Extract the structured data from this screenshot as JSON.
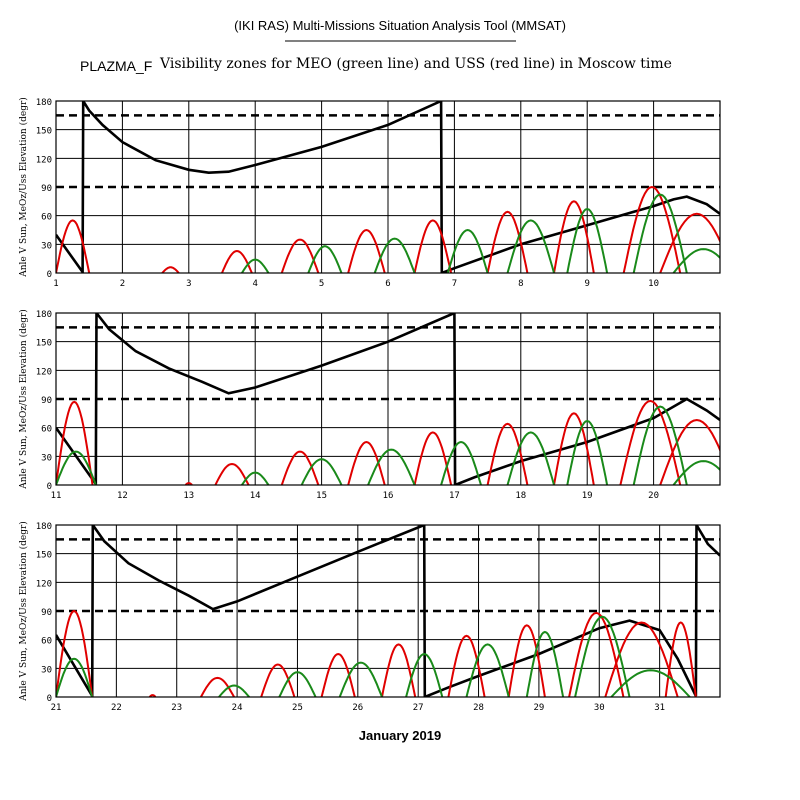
{
  "header": {
    "tool_title": "(IKI RAS) Multi-Missions Situation Analysis Tool (MMSAT)",
    "mission": "PLAZMA_F",
    "subtitle": "Visibility zones for MEO (green line) and USS (red line) in Moscow time"
  },
  "colors": {
    "background": "#ffffff",
    "frame": "#000000",
    "grid": "#000000",
    "sun_angle": "#000000",
    "meo_elevation": "#1a8a1a",
    "uss_elevation": "#e00000"
  },
  "chart_data": [
    {
      "type": "line",
      "panel": 1,
      "ylabel": "Anle V Sun, MeOz/Uss Elevation (degr)",
      "xlim": [
        1,
        11
      ],
      "ylim": [
        0,
        180
      ],
      "xticks": [
        "1",
        "2",
        "3",
        "4",
        "5",
        "6",
        "7",
        "8",
        "9",
        "10"
      ],
      "yticks": [
        "0",
        "30",
        "60",
        "90",
        "120",
        "150",
        "180"
      ],
      "grid": true,
      "dashed_reference_lines": [
        90,
        165
      ],
      "series": [
        {
          "name": "",
          "role": "sun_angle",
          "color": "#000000",
          "x": [
            1.0,
            1.4,
            1.41,
            1.5,
            1.7,
            2.0,
            2.5,
            3.0,
            3.3,
            3.6,
            4.0,
            5.0,
            6.0,
            6.8,
            6.81,
            7.0,
            8.0,
            9.0,
            10.0,
            10.3,
            10.5,
            10.8,
            11.0
          ],
          "values": [
            40,
            1,
            180,
            170,
            155,
            137,
            118,
            108,
            105,
            106,
            113,
            132,
            155,
            180,
            0,
            5,
            30,
            50,
            70,
            77,
            80,
            72,
            62
          ]
        },
        {
          "name": "",
          "role": "uss_elevation",
          "color": "#e00000",
          "passes": [
            [
              1.0,
              1.5,
              55
            ],
            [
              2.6,
              2.85,
              6
            ],
            [
              3.5,
              3.95,
              23
            ],
            [
              4.4,
              4.95,
              35
            ],
            [
              5.4,
              5.95,
              45
            ],
            [
              6.4,
              6.95,
              55
            ],
            [
              7.5,
              8.1,
              64
            ],
            [
              8.5,
              9.1,
              75
            ],
            [
              9.55,
              10.4,
              90
            ],
            [
              10.1,
              11.2,
              62
            ]
          ]
        },
        {
          "name": "",
          "role": "meo_elevation",
          "color": "#1a8a1a",
          "passes": [
            [
              3.8,
              4.2,
              14
            ],
            [
              4.8,
              5.3,
              28
            ],
            [
              5.8,
              6.4,
              36
            ],
            [
              6.9,
              7.5,
              45
            ],
            [
              7.8,
              8.5,
              55
            ],
            [
              8.7,
              9.3,
              67
            ],
            [
              9.7,
              10.5,
              82
            ],
            [
              10.3,
              11.2,
              25
            ]
          ]
        }
      ]
    },
    {
      "type": "line",
      "panel": 2,
      "ylabel": "Anle V Sun, MeOz/Uss Elevation (degr)",
      "xlim": [
        11,
        21
      ],
      "ylim": [
        0,
        180
      ],
      "xticks": [
        "11",
        "12",
        "13",
        "14",
        "15",
        "16",
        "17",
        "18",
        "19",
        "20"
      ],
      "yticks": [
        "0",
        "30",
        "60",
        "90",
        "120",
        "150",
        "180"
      ],
      "grid": true,
      "dashed_reference_lines": [
        90,
        165
      ],
      "series": [
        {
          "name": "",
          "role": "sun_angle",
          "color": "#000000",
          "x": [
            11.0,
            11.6,
            11.61,
            11.8,
            12.2,
            12.7,
            13.2,
            13.6,
            14.0,
            15.0,
            16.0,
            17.0,
            17.01,
            17.3,
            18.0,
            19.0,
            20.0,
            20.5,
            20.8,
            21.0
          ],
          "values": [
            60,
            1,
            180,
            163,
            140,
            122,
            108,
            96,
            102,
            125,
            150,
            180,
            0,
            8,
            25,
            45,
            70,
            90,
            78,
            68
          ]
        },
        {
          "name": "",
          "role": "uss_elevation",
          "color": "#e00000",
          "passes": [
            [
              11.0,
              11.55,
              87
            ],
            [
              12.95,
              13.05,
              2
            ],
            [
              13.4,
              13.9,
              22
            ],
            [
              14.4,
              14.95,
              35
            ],
            [
              15.4,
              15.95,
              45
            ],
            [
              16.4,
              16.95,
              55
            ],
            [
              17.5,
              18.1,
              64
            ],
            [
              18.5,
              19.1,
              75
            ],
            [
              19.5,
              20.4,
              88
            ],
            [
              20.1,
              21.2,
              68
            ]
          ]
        },
        {
          "name": "",
          "role": "meo_elevation",
          "color": "#1a8a1a",
          "passes": [
            [
              11.0,
              11.6,
              35
            ],
            [
              13.8,
              14.2,
              13
            ],
            [
              14.7,
              15.3,
              27
            ],
            [
              15.7,
              16.4,
              37
            ],
            [
              16.8,
              17.4,
              45
            ],
            [
              17.8,
              18.5,
              55
            ],
            [
              18.7,
              19.3,
              67
            ],
            [
              19.7,
              20.5,
              82
            ],
            [
              20.3,
              21.2,
              25
            ]
          ]
        }
      ]
    },
    {
      "type": "line",
      "panel": 3,
      "ylabel": "Anle V Sun, MeOz/Uss Elevation (degr)",
      "xlabel": "January 2019",
      "xlim": [
        21,
        32
      ],
      "ylim": [
        0,
        180
      ],
      "xticks": [
        "21",
        "22",
        "23",
        "24",
        "25",
        "26",
        "27",
        "28",
        "29",
        "30",
        "31"
      ],
      "yticks": [
        "0",
        "30",
        "60",
        "90",
        "120",
        "150",
        "180"
      ],
      "grid": true,
      "dashed_reference_lines": [
        90,
        165
      ],
      "series": [
        {
          "name": "",
          "role": "sun_angle",
          "color": "#000000",
          "x": [
            21.0,
            21.6,
            21.61,
            21.8,
            22.2,
            22.7,
            23.2,
            23.6,
            24.0,
            25.0,
            26.0,
            27.1,
            27.11,
            27.5,
            28.0,
            29.0,
            30.0,
            30.5,
            31.0,
            31.3,
            31.6,
            31.61,
            31.8,
            32.0
          ],
          "values": [
            65,
            1,
            180,
            163,
            140,
            122,
            106,
            92,
            100,
            126,
            152,
            180,
            0,
            10,
            22,
            45,
            72,
            80,
            70,
            40,
            1,
            180,
            160,
            148
          ]
        },
        {
          "name": "",
          "role": "uss_elevation",
          "color": "#e00000",
          "passes": [
            [
              21.0,
              21.6,
              90
            ],
            [
              22.55,
              22.65,
              2
            ],
            [
              23.4,
              23.95,
              20
            ],
            [
              24.4,
              24.95,
              34
            ],
            [
              25.4,
              25.95,
              45
            ],
            [
              26.4,
              26.95,
              55
            ],
            [
              27.5,
              28.1,
              64
            ],
            [
              28.5,
              29.1,
              75
            ],
            [
              29.5,
              30.4,
              88
            ],
            [
              30.1,
              31.3,
              78
            ],
            [
              31.1,
              31.6,
              78
            ]
          ]
        },
        {
          "name": "",
          "role": "meo_elevation",
          "color": "#1a8a1a",
          "passes": [
            [
              21.0,
              21.6,
              40
            ],
            [
              23.7,
              24.2,
              12
            ],
            [
              24.7,
              25.3,
              26
            ],
            [
              25.7,
              26.4,
              36
            ],
            [
              26.8,
              27.4,
              45
            ],
            [
              27.8,
              28.5,
              55
            ],
            [
              28.8,
              29.4,
              68
            ],
            [
              29.6,
              30.5,
              84
            ],
            [
              30.2,
              31.5,
              28
            ]
          ]
        }
      ]
    }
  ]
}
